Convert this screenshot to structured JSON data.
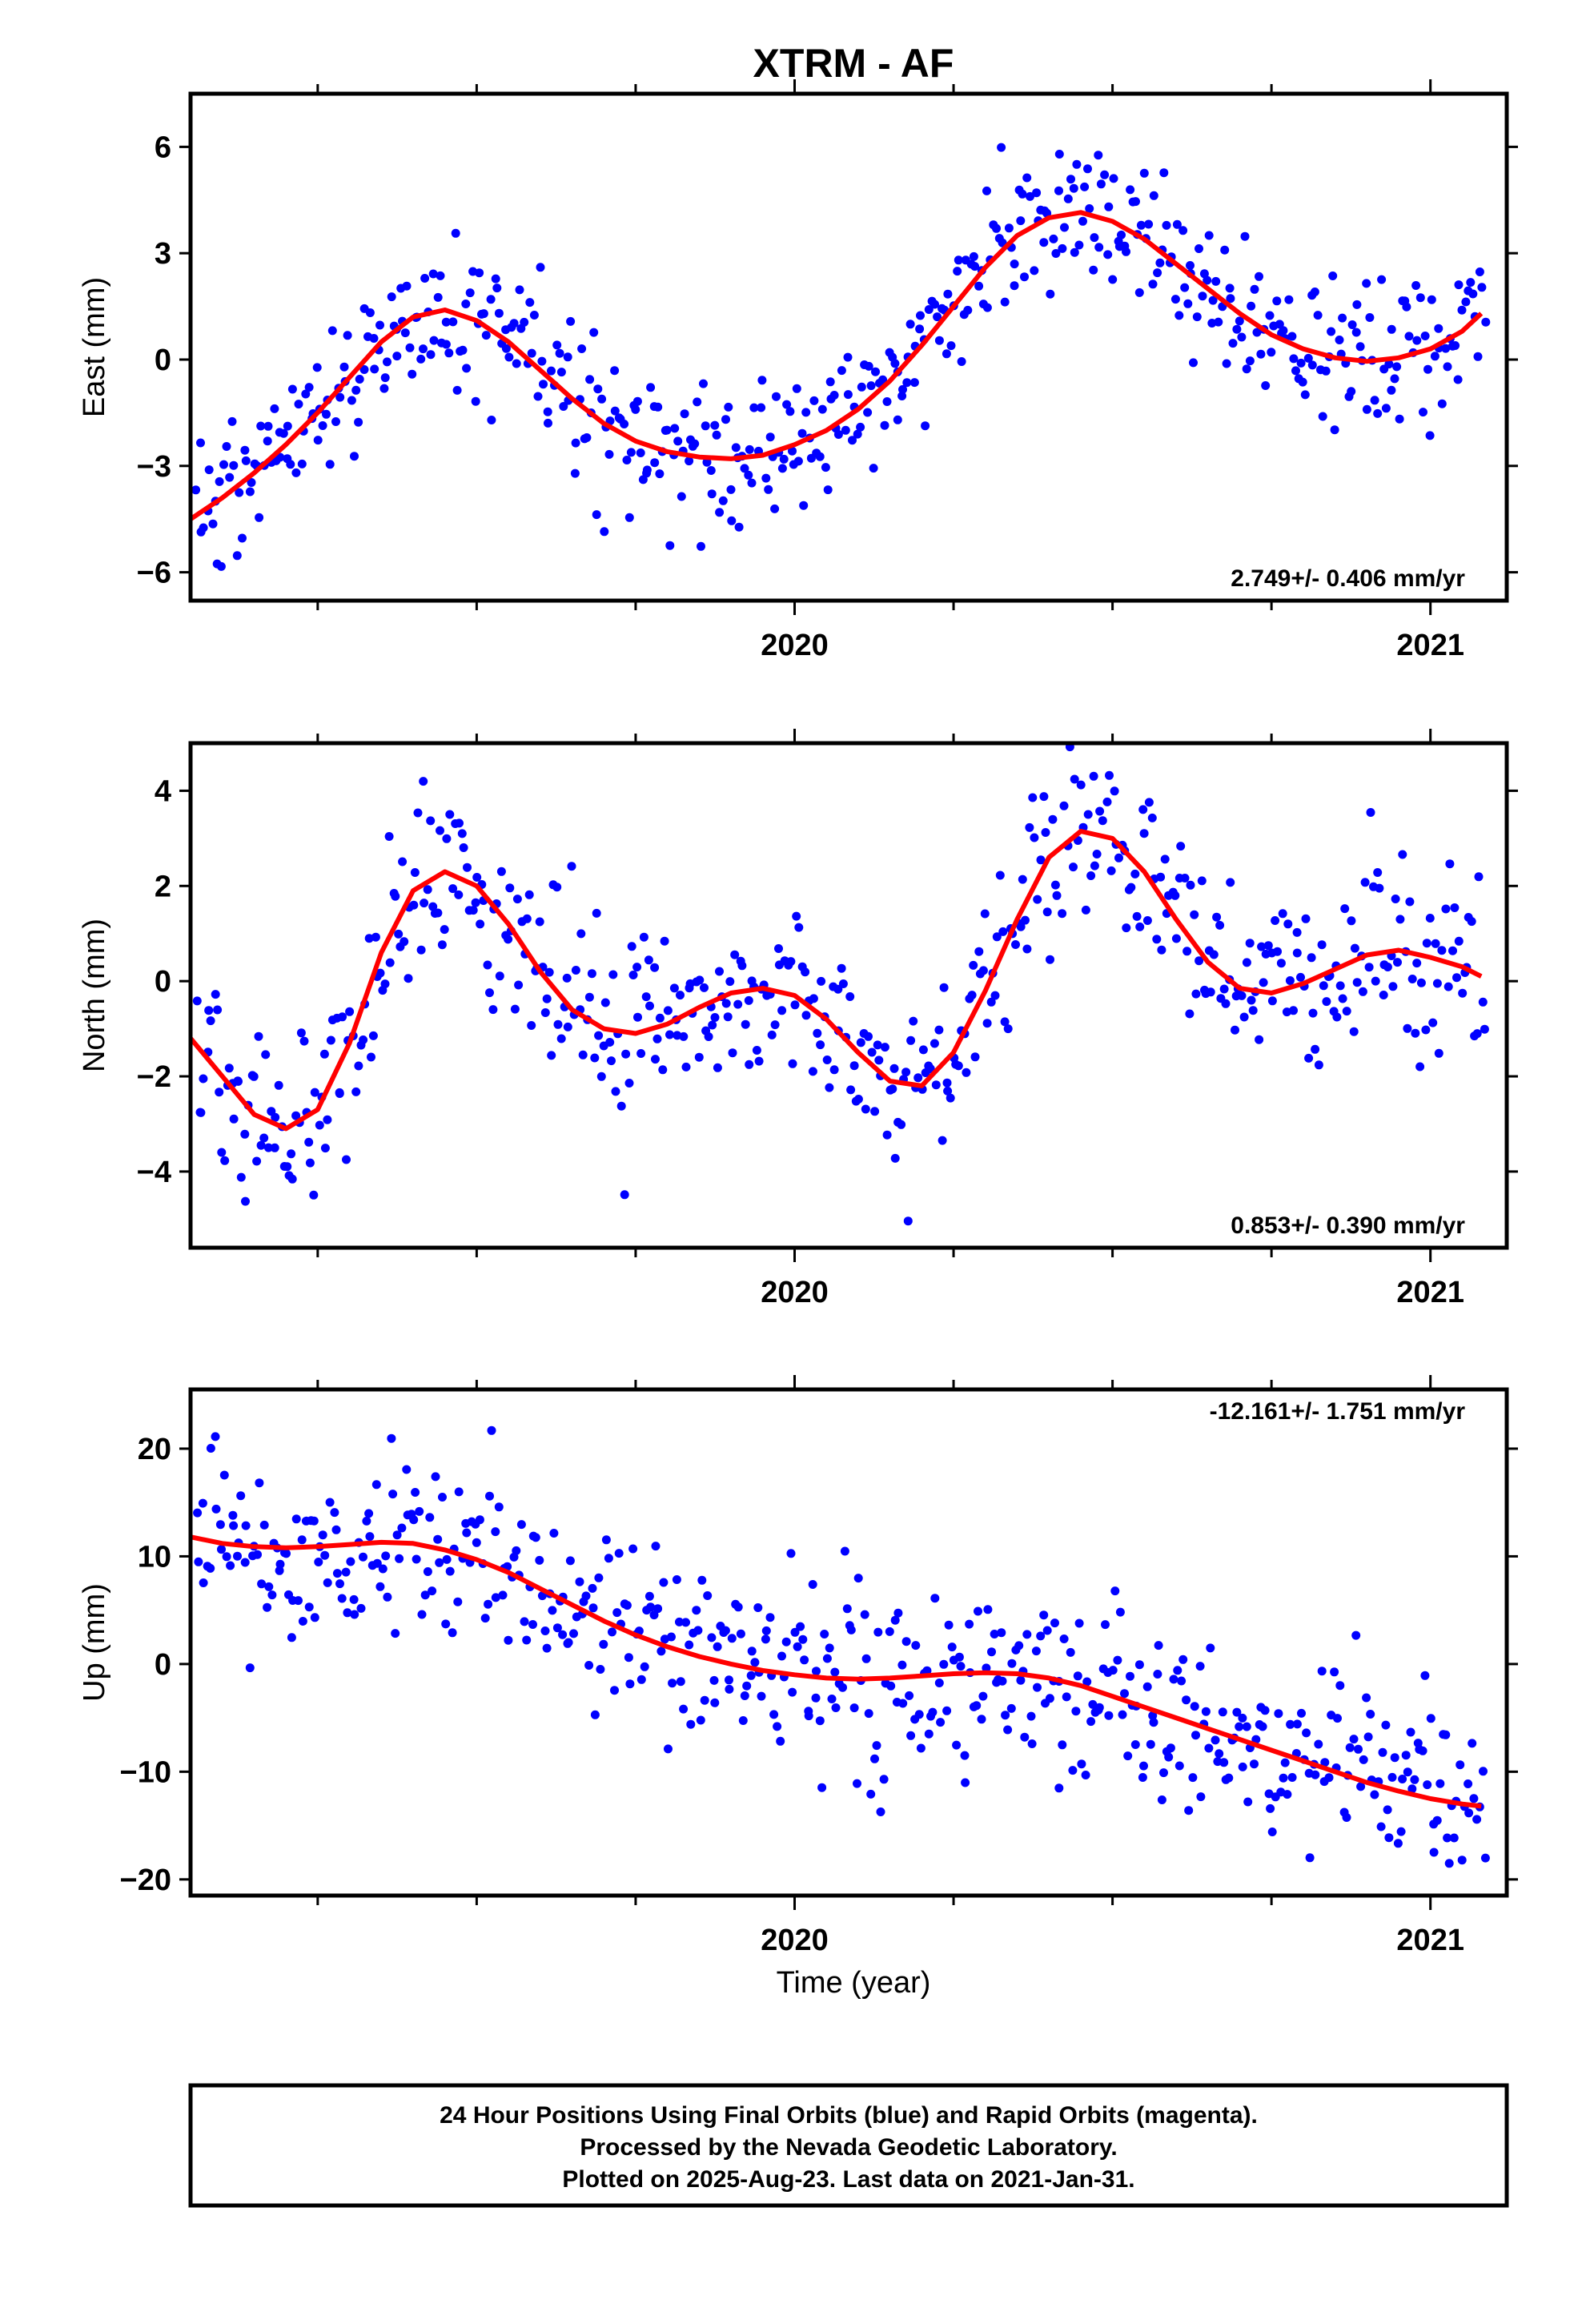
{
  "title": "XTRM - AF",
  "xlabel": "Time (year)",
  "footer": {
    "line1": "24 Hour Positions Using Final Orbits (blue) and Rapid Orbits (magenta).",
    "line2": "Processed by the Nevada Geodetic Laboratory.",
    "line3": "Plotted on 2025-Aug-23. Last data on 2021-Jan-31."
  },
  "colors": {
    "final_orbits": "#0000ff",
    "fit": "#ff0000",
    "frame": "#000000"
  },
  "chart_data": [
    {
      "type": "scatter",
      "ylabel": "East (mm)",
      "rate": "2.749+/- 0.406 mm/yr",
      "xlim": [
        2019.05,
        2021.12
      ],
      "ylim": [
        -6.8,
        7.5
      ],
      "yticks": [
        -6,
        -3,
        0,
        3,
        6
      ],
      "ytick_labels": [
        "−6",
        "−3",
        "0",
        "3",
        "6"
      ],
      "xticks_labeled": [
        2020,
        2021
      ],
      "xtick_labels": [
        "2020",
        "2021"
      ],
      "fit_curve": {
        "x": [
          2019.05,
          2019.1,
          2019.15,
          2019.2,
          2019.25,
          2019.3,
          2019.35,
          2019.4,
          2019.45,
          2019.5,
          2019.55,
          2019.6,
          2019.65,
          2019.7,
          2019.75,
          2019.8,
          2019.85,
          2019.9,
          2019.95,
          2020.0,
          2020.05,
          2020.1,
          2020.15,
          2020.2,
          2020.25,
          2020.3,
          2020.35,
          2020.4,
          2020.45,
          2020.5,
          2020.55,
          2020.6,
          2020.65,
          2020.7,
          2020.75,
          2020.8,
          2020.85,
          2020.9,
          2020.95,
          2021.0,
          2021.05,
          2021.08
        ],
        "y": [
          -4.5,
          -3.9,
          -3.2,
          -2.4,
          -1.5,
          -0.5,
          0.5,
          1.2,
          1.4,
          1.1,
          0.5,
          -0.3,
          -1.1,
          -1.8,
          -2.3,
          -2.6,
          -2.75,
          -2.8,
          -2.7,
          -2.4,
          -2.0,
          -1.4,
          -0.6,
          0.4,
          1.5,
          2.6,
          3.5,
          4.0,
          4.15,
          3.9,
          3.4,
          2.7,
          2.0,
          1.3,
          0.7,
          0.3,
          0.05,
          -0.05,
          0.05,
          0.3,
          0.8,
          1.3
        ]
      },
      "scatter_sd": 1.05,
      "scatter_count": 520
    },
    {
      "type": "scatter",
      "ylabel": "North (mm)",
      "rate": "0.853+/- 0.390 mm/yr",
      "xlim": [
        2019.05,
        2021.12
      ],
      "ylim": [
        -5.6,
        5.0
      ],
      "yticks": [
        -4,
        -2,
        0,
        2,
        4
      ],
      "ytick_labels": [
        "−4",
        "−2",
        "0",
        "2",
        "4"
      ],
      "xticks_labeled": [
        2020,
        2021
      ],
      "xtick_labels": [
        "2020",
        "2021"
      ],
      "fit_curve": {
        "x": [
          2019.05,
          2019.1,
          2019.15,
          2019.2,
          2019.25,
          2019.3,
          2019.35,
          2019.4,
          2019.45,
          2019.5,
          2019.55,
          2019.6,
          2019.65,
          2019.7,
          2019.75,
          2019.8,
          2019.85,
          2019.9,
          2019.95,
          2020.0,
          2020.05,
          2020.1,
          2020.15,
          2020.2,
          2020.25,
          2020.3,
          2020.35,
          2020.4,
          2020.45,
          2020.5,
          2020.55,
          2020.6,
          2020.65,
          2020.7,
          2020.75,
          2020.8,
          2020.85,
          2020.9,
          2020.95,
          2021.0,
          2021.05,
          2021.08
        ],
        "y": [
          -1.2,
          -2.0,
          -2.8,
          -3.1,
          -2.7,
          -1.3,
          0.6,
          1.9,
          2.3,
          2.0,
          1.2,
          0.2,
          -0.6,
          -1.0,
          -1.1,
          -0.9,
          -0.55,
          -0.25,
          -0.15,
          -0.3,
          -0.8,
          -1.5,
          -2.1,
          -2.2,
          -1.5,
          -0.2,
          1.3,
          2.6,
          3.15,
          3.0,
          2.3,
          1.3,
          0.4,
          -0.15,
          -0.25,
          -0.05,
          0.25,
          0.55,
          0.65,
          0.5,
          0.3,
          0.1
        ]
      },
      "scatter_sd": 0.95,
      "scatter_count": 520
    },
    {
      "type": "scatter",
      "ylabel": "Up (mm)",
      "rate": "-12.161+/- 1.751 mm/yr",
      "xlim": [
        2019.05,
        2021.12
      ],
      "ylim": [
        -21.5,
        25.5
      ],
      "yticks": [
        -20,
        -10,
        0,
        10,
        20
      ],
      "ytick_labels": [
        "−20",
        "−10",
        "0",
        "10",
        "20"
      ],
      "xticks_labeled": [
        2020,
        2021
      ],
      "xtick_labels": [
        "2020",
        "2021"
      ],
      "fit_curve": {
        "x": [
          2019.05,
          2019.1,
          2019.15,
          2019.2,
          2019.25,
          2019.3,
          2019.35,
          2019.4,
          2019.45,
          2019.5,
          2019.55,
          2019.6,
          2019.65,
          2019.7,
          2019.75,
          2019.8,
          2019.85,
          2019.9,
          2019.95,
          2020.0,
          2020.05,
          2020.1,
          2020.15,
          2020.2,
          2020.25,
          2020.3,
          2020.35,
          2020.4,
          2020.45,
          2020.5,
          2020.55,
          2020.6,
          2020.65,
          2020.7,
          2020.75,
          2020.8,
          2020.85,
          2020.9,
          2020.95,
          2021.0,
          2021.05,
          2021.08
        ],
        "y": [
          11.8,
          11.2,
          10.9,
          10.8,
          10.9,
          11.1,
          11.3,
          11.2,
          10.6,
          9.7,
          8.5,
          7.0,
          5.5,
          4.0,
          2.7,
          1.6,
          0.7,
          0.0,
          -0.6,
          -1.0,
          -1.3,
          -1.4,
          -1.3,
          -1.1,
          -0.9,
          -0.8,
          -0.9,
          -1.3,
          -2.0,
          -3.0,
          -4.0,
          -5.0,
          -6.0,
          -7.0,
          -8.0,
          -9.0,
          -10.0,
          -11.0,
          -11.8,
          -12.5,
          -13.0,
          -13.2
        ]
      },
      "scatter_sd": 4.2,
      "scatter_count": 520
    }
  ]
}
